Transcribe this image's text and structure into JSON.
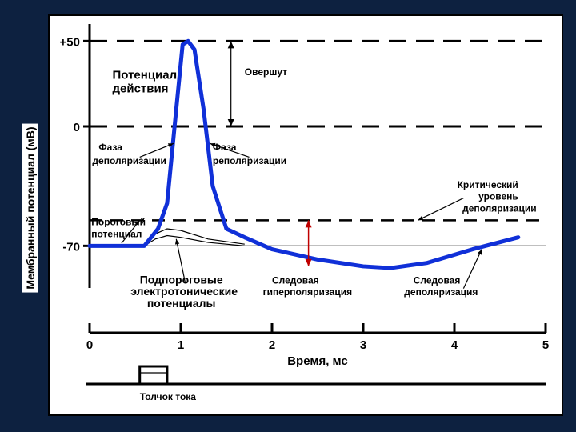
{
  "figure": {
    "type": "line",
    "background_color": "#0d2140",
    "panel_color": "#ffffff",
    "curve_color": "#1030d8",
    "axis_color": "#000000",
    "curve_width": 5,
    "y_axis_label": "Мембранный потенциал (мВ)",
    "x_axis_label": "Время, мс",
    "y_ticks": [
      {
        "value": 50,
        "label": "+50"
      },
      {
        "value": 0,
        "label": "0"
      },
      {
        "value": -70,
        "label": "-70"
      }
    ],
    "x_ticks": [
      {
        "value": 0,
        "label": "0"
      },
      {
        "value": 1,
        "label": "1"
      },
      {
        "value": 2,
        "label": "2"
      },
      {
        "value": 3,
        "label": "3"
      },
      {
        "value": 4,
        "label": "4"
      },
      {
        "value": 5,
        "label": "5"
      }
    ],
    "y_range": [
      -90,
      60
    ],
    "x_range": [
      0,
      5
    ],
    "reference_lines": [
      {
        "y": 50,
        "style": "dash-major"
      },
      {
        "y": 0,
        "style": "dash-major"
      },
      {
        "y": -55,
        "style": "dash-mid"
      }
    ],
    "action_potential_curve": [
      {
        "x": 0.0,
        "y": -70
      },
      {
        "x": 0.6,
        "y": -70
      },
      {
        "x": 0.75,
        "y": -60
      },
      {
        "x": 0.85,
        "y": -45
      },
      {
        "x": 0.95,
        "y": 10
      },
      {
        "x": 1.02,
        "y": 48
      },
      {
        "x": 1.08,
        "y": 50
      },
      {
        "x": 1.15,
        "y": 45
      },
      {
        "x": 1.25,
        "y": 10
      },
      {
        "x": 1.35,
        "y": -35
      },
      {
        "x": 1.5,
        "y": -60
      },
      {
        "x": 1.7,
        "y": -65
      },
      {
        "x": 2.0,
        "y": -72
      },
      {
        "x": 2.5,
        "y": -78
      },
      {
        "x": 3.0,
        "y": -82
      },
      {
        "x": 3.3,
        "y": -83
      },
      {
        "x": 3.7,
        "y": -80
      },
      {
        "x": 4.2,
        "y": -72
      },
      {
        "x": 4.7,
        "y": -65
      }
    ],
    "subthreshold_curves": [
      [
        {
          "x": 0.6,
          "y": -70
        },
        {
          "x": 0.72,
          "y": -63
        },
        {
          "x": 0.85,
          "y": -60
        },
        {
          "x": 1.0,
          "y": -61
        },
        {
          "x": 1.3,
          "y": -66
        },
        {
          "x": 1.7,
          "y": -69
        }
      ],
      [
        {
          "x": 0.6,
          "y": -70
        },
        {
          "x": 0.72,
          "y": -66
        },
        {
          "x": 0.85,
          "y": -64
        },
        {
          "x": 1.0,
          "y": -65
        },
        {
          "x": 1.3,
          "y": -68
        },
        {
          "x": 1.7,
          "y": -70
        }
      ]
    ],
    "resting_line_y": -70,
    "labels": {
      "action_potential_1": "Потенциал",
      "action_potential_2": "действия",
      "overshoot": "Овершут",
      "depol_phase_1": "Фаза",
      "depol_phase_2": "деполяризации",
      "repol_phase_1": "Фаза",
      "repol_phase_2": "реполяризации",
      "critical_1": "Критический",
      "critical_2": "уровень",
      "critical_3": "деполяризации",
      "threshold_1": "Пороговый",
      "threshold_2": "потенциал",
      "subthreshold_1": "Подпороговые",
      "subthreshold_2": "электротонические",
      "subthreshold_3": "потенциалы",
      "after_hyper_1": "Следовая",
      "after_hyper_2": "гиперполяризация",
      "after_depol_1": "Следовая",
      "after_depol_2": "деполяризация",
      "stimulus": "Толчок тока"
    },
    "label_fontsize_main": 15,
    "label_fontsize_small": 12,
    "label_fontsize_bold": 14,
    "tick_fontsize": 15
  }
}
